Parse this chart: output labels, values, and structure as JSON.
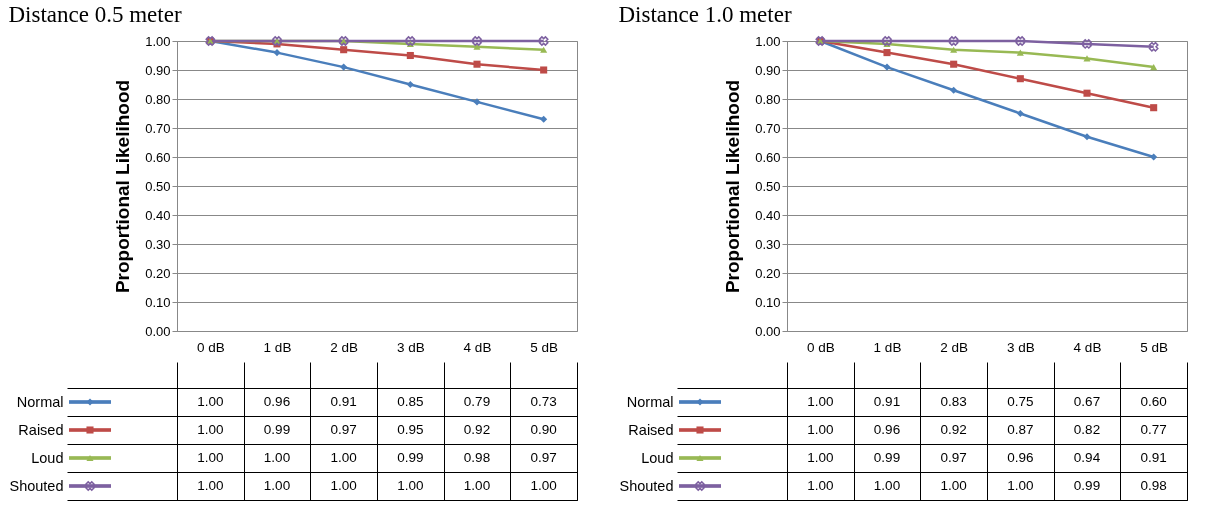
{
  "chart_data": [
    {
      "type": "line",
      "title": "Distance 0.5 meter",
      "ylabel": "Proportional Likelihood",
      "categories": [
        "0 dB",
        "1 dB",
        "2 dB",
        "3 dB",
        "4 dB",
        "5 dB"
      ],
      "ylim": [
        0,
        1
      ],
      "yticks": [
        {
          "value": 0,
          "label": "0.00"
        },
        {
          "value": 0.1,
          "label": "0.10"
        },
        {
          "value": 0.2,
          "label": "0.20"
        },
        {
          "value": 0.3,
          "label": "0.30"
        },
        {
          "value": 0.4,
          "label": "0.40"
        },
        {
          "value": 0.5,
          "label": "0.50"
        },
        {
          "value": 0.6,
          "label": "0.60"
        },
        {
          "value": 0.7,
          "label": "0.70"
        },
        {
          "value": 0.8,
          "label": "0.80"
        },
        {
          "value": 0.9,
          "label": "0.90"
        },
        {
          "value": 1,
          "label": "1.00"
        }
      ],
      "grid": "y",
      "legend": "bottom",
      "series": [
        {
          "name": "Normal",
          "color": "#4a7ebb",
          "marker": "diamond",
          "values": [
            1.0,
            0.96,
            0.91,
            0.85,
            0.79,
            0.73
          ],
          "value_labels": [
            "1.00",
            "0.96",
            "0.91",
            "0.85",
            "0.79",
            "0.73"
          ]
        },
        {
          "name": "Raised",
          "color": "#be4b48",
          "marker": "square",
          "values": [
            1.0,
            0.99,
            0.97,
            0.95,
            0.92,
            0.9
          ],
          "value_labels": [
            "1.00",
            "0.99",
            "0.97",
            "0.95",
            "0.92",
            "0.90"
          ]
        },
        {
          "name": "Loud",
          "color": "#98b954",
          "marker": "triangle",
          "values": [
            1.0,
            1.0,
            1.0,
            0.99,
            0.98,
            0.97
          ],
          "value_labels": [
            "1.00",
            "1.00",
            "1.00",
            "0.99",
            "0.98",
            "0.97"
          ]
        },
        {
          "name": "Shouted",
          "color": "#7d60a0",
          "marker": "cross",
          "values": [
            1.0,
            1.0,
            1.0,
            1.0,
            1.0,
            1.0
          ],
          "value_labels": [
            "1.00",
            "1.00",
            "1.00",
            "1.00",
            "1.00",
            "1.00"
          ]
        }
      ]
    },
    {
      "type": "line",
      "title": "Distance 1.0 meter",
      "ylabel": "Proportional Likelihood",
      "categories": [
        "0 dB",
        "1 dB",
        "2 dB",
        "3 dB",
        "4 dB",
        "5 dB"
      ],
      "ylim": [
        0,
        1
      ],
      "yticks": [
        {
          "value": 0,
          "label": "0.00"
        },
        {
          "value": 0.1,
          "label": "0.10"
        },
        {
          "value": 0.2,
          "label": "0.20"
        },
        {
          "value": 0.3,
          "label": "0.30"
        },
        {
          "value": 0.4,
          "label": "0.40"
        },
        {
          "value": 0.5,
          "label": "0.50"
        },
        {
          "value": 0.6,
          "label": "0.60"
        },
        {
          "value": 0.7,
          "label": "0.70"
        },
        {
          "value": 0.8,
          "label": "0.80"
        },
        {
          "value": 0.9,
          "label": "0.90"
        },
        {
          "value": 1,
          "label": "1.00"
        }
      ],
      "grid": "y",
      "legend": "bottom",
      "series": [
        {
          "name": "Normal",
          "color": "#4a7ebb",
          "marker": "diamond",
          "values": [
            1.0,
            0.91,
            0.83,
            0.75,
            0.67,
            0.6
          ],
          "value_labels": [
            "1.00",
            "0.91",
            "0.83",
            "0.75",
            "0.67",
            "0.60"
          ]
        },
        {
          "name": "Raised",
          "color": "#be4b48",
          "marker": "square",
          "values": [
            1.0,
            0.96,
            0.92,
            0.87,
            0.82,
            0.77
          ],
          "value_labels": [
            "1.00",
            "0.96",
            "0.92",
            "0.87",
            "0.82",
            "0.77"
          ]
        },
        {
          "name": "Loud",
          "color": "#98b954",
          "marker": "triangle",
          "values": [
            1.0,
            0.99,
            0.97,
            0.96,
            0.94,
            0.91
          ],
          "value_labels": [
            "1.00",
            "0.99",
            "0.97",
            "0.96",
            "0.94",
            "0.91"
          ]
        },
        {
          "name": "Shouted",
          "color": "#7d60a0",
          "marker": "cross",
          "values": [
            1.0,
            1.0,
            1.0,
            1.0,
            0.99,
            0.98
          ],
          "value_labels": [
            "1.00",
            "1.00",
            "1.00",
            "1.00",
            "0.99",
            "0.98"
          ]
        }
      ]
    }
  ]
}
